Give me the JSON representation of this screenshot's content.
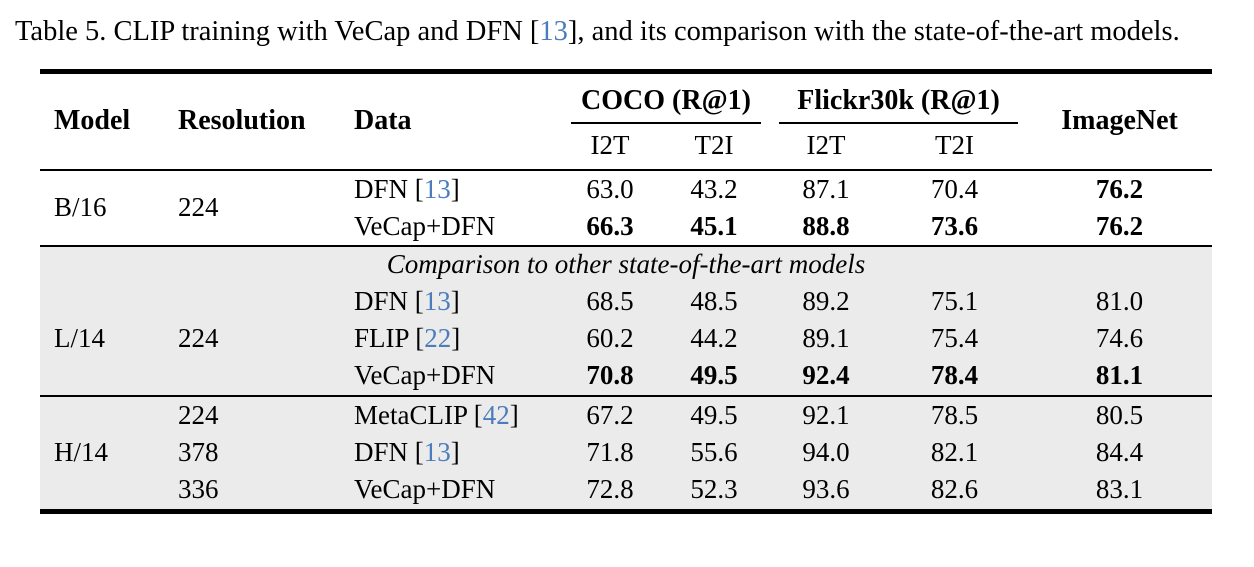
{
  "caption": {
    "pre": "Table 5. CLIP training with VeCap and DFN [",
    "cite": "13",
    "post": "], and its comparison with the state-of-the-art models."
  },
  "colors": {
    "citation_blue": "#4b7cbe",
    "section_band_gray": "#ebebeb",
    "rule_black": "#000000",
    "page_background": "#ffffff"
  },
  "table": {
    "headers": {
      "model": "Model",
      "resolution": "Resolution",
      "data": "Data",
      "coco_group": "COCO (R@1)",
      "flickr_group": "Flickr30k (R@1)",
      "imagenet": "ImageNet",
      "i2t": "I2T",
      "t2i": "T2I"
    },
    "note": "Comparison to other state-of-the-art models",
    "sections": {
      "b16": {
        "model": "B/16",
        "resolution": "224",
        "rows": [
          {
            "data_pre": "DFN [",
            "data_cite": "13",
            "data_post": "]",
            "values": [
              "63.0",
              "43.2",
              "87.1",
              "70.4",
              "76.2"
            ]
          },
          {
            "data_pre": "VeCap+DFN",
            "data_cite": "",
            "data_post": "",
            "values": [
              "66.3",
              "45.1",
              "88.8",
              "73.6",
              "76.2"
            ]
          }
        ]
      },
      "l14": {
        "model": "L/14",
        "resolution": "224",
        "rows": [
          {
            "data_pre": "DFN [",
            "data_cite": "13",
            "data_post": "]",
            "values": [
              "68.5",
              "48.5",
              "89.2",
              "75.1",
              "81.0"
            ]
          },
          {
            "data_pre": "FLIP [",
            "data_cite": "22",
            "data_post": "]",
            "values": [
              "60.2",
              "44.2",
              "89.1",
              "75.4",
              "74.6"
            ]
          },
          {
            "data_pre": "VeCap+DFN",
            "data_cite": "",
            "data_post": "",
            "values": [
              "70.8",
              "49.5",
              "92.4",
              "78.4",
              "81.1"
            ]
          }
        ]
      },
      "h14": {
        "model": "H/14",
        "rows": [
          {
            "resolution": "224",
            "data_pre": "MetaCLIP [",
            "data_cite": "42",
            "data_post": "]",
            "values": [
              "67.2",
              "49.5",
              "92.1",
              "78.5",
              "80.5"
            ]
          },
          {
            "resolution": "378",
            "data_pre": "DFN [",
            "data_cite": "13",
            "data_post": "]",
            "values": [
              "71.8",
              "55.6",
              "94.0",
              "82.1",
              "84.4"
            ]
          },
          {
            "resolution": "336",
            "data_pre": "VeCap+DFN",
            "data_cite": "",
            "data_post": "",
            "values": [
              "72.8",
              "52.3",
              "93.6",
              "82.6",
              "83.1"
            ]
          }
        ]
      }
    }
  }
}
